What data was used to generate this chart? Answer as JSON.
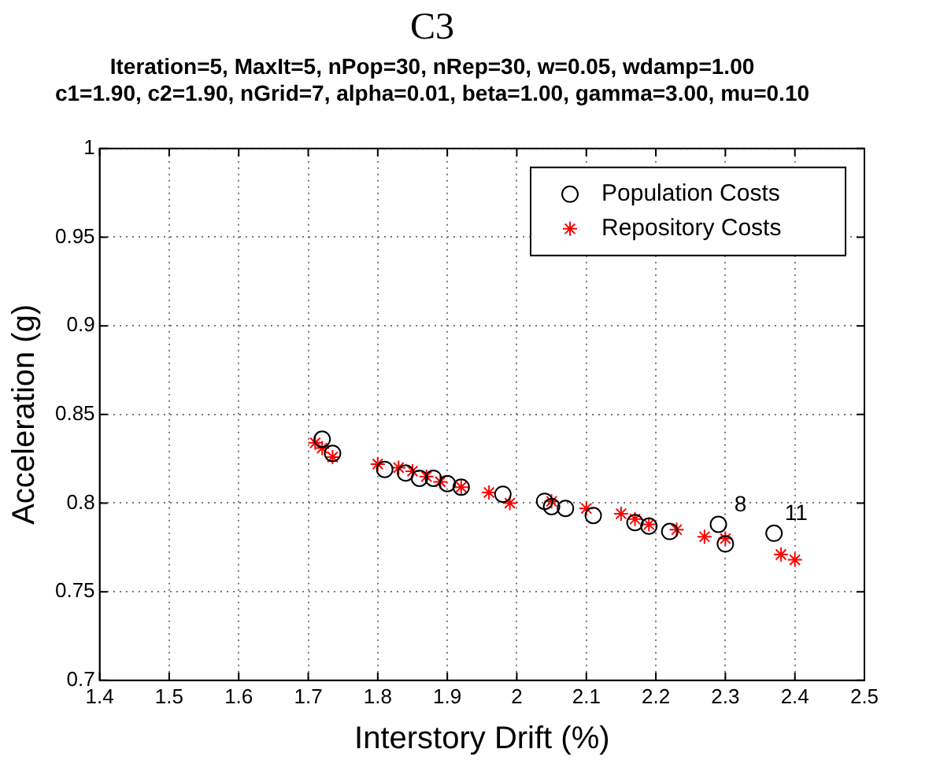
{
  "chart_data": {
    "type": "scatter",
    "title": "C3",
    "subtitle": "Iteration=5, MaxIt=5, nPop=30, nRep=30, w=0.05, wdamp=1.00\nc1=1.90, c2=1.90, nGrid=7, alpha=0.01, beta=1.00, gamma=3.00, mu=0.10",
    "xlabel": "Interstory Drift (%)",
    "ylabel": "Acceleration (g)",
    "xlim": [
      1.4,
      2.5
    ],
    "xticks": [
      1.4,
      1.5,
      1.6,
      1.7,
      1.8,
      1.9,
      2,
      2.1,
      2.2,
      2.3,
      2.4,
      2.5
    ],
    "ylim": [
      0.7,
      1
    ],
    "yticks": [
      0.7,
      0.75,
      0.8,
      0.85,
      0.9,
      0.95,
      1
    ],
    "grid": true,
    "legend": "top right",
    "series": [
      {
        "name": "Population Costs",
        "color": "#000000",
        "marker": "circle",
        "x": [
          1.72,
          1.735,
          1.81,
          1.84,
          1.86,
          1.88,
          1.9,
          1.92,
          1.98,
          2.04,
          2.05,
          2.07,
          2.11,
          2.17,
          2.19,
          2.22,
          2.29,
          2.3,
          2.37
        ],
        "values": [
          0.836,
          0.828,
          0.819,
          0.817,
          0.814,
          0.814,
          0.811,
          0.809,
          0.805,
          0.801,
          0.798,
          0.797,
          0.793,
          0.789,
          0.787,
          0.784,
          0.788,
          0.777,
          0.783
        ]
      },
      {
        "name": "Repository Costs",
        "color": "#ff0000",
        "marker": "cross",
        "x": [
          1.71,
          1.72,
          1.735,
          1.8,
          1.83,
          1.85,
          1.87,
          1.89,
          1.92,
          1.96,
          1.99,
          2.05,
          2.1,
          2.15,
          2.17,
          2.19,
          2.23,
          2.27,
          2.3,
          2.38,
          2.4
        ],
        "values": [
          0.834,
          0.831,
          0.826,
          0.822,
          0.82,
          0.818,
          0.815,
          0.812,
          0.809,
          0.806,
          0.8,
          0.801,
          0.797,
          0.794,
          0.791,
          0.788,
          0.785,
          0.781,
          0.78,
          0.771,
          0.768
        ]
      }
    ],
    "annotations": [
      {
        "text": "8",
        "x": 2.29,
        "y": 0.788
      },
      {
        "text": "11",
        "x": 2.37,
        "y": 0.783
      }
    ]
  }
}
